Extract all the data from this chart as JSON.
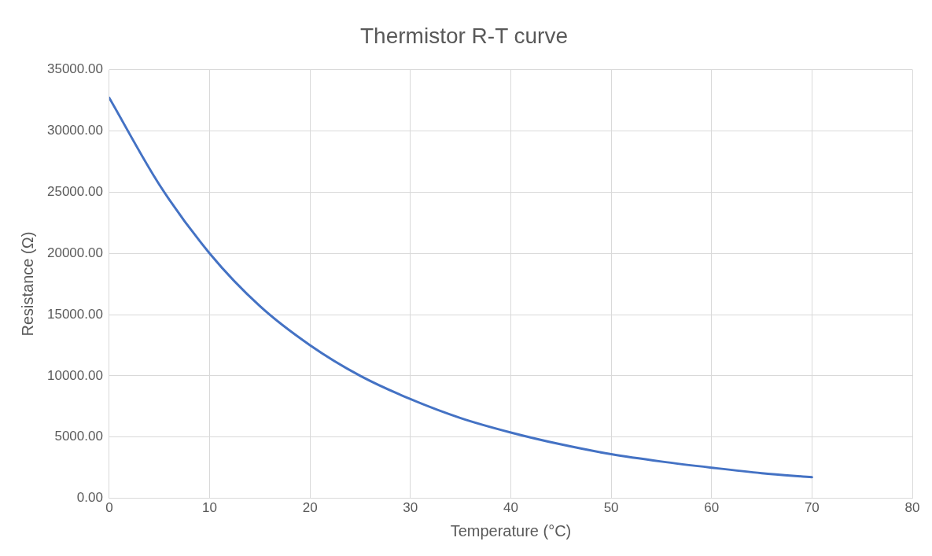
{
  "chart_data": {
    "type": "line",
    "title": "Thermistor R-T curve",
    "xlabel": "Temperature (°C)",
    "ylabel": "Resistance (Ω)",
    "series": [
      {
        "color": "#4472c4",
        "x": [
          0,
          5,
          10,
          15,
          20,
          25,
          30,
          35,
          40,
          45,
          50,
          55,
          60,
          65,
          70
        ],
        "values": [
          32700,
          25600,
          20000,
          15700,
          12500,
          10000,
          8100,
          6550,
          5370,
          4400,
          3600,
          3000,
          2500,
          2050,
          1720
        ]
      }
    ],
    "xlim": [
      0,
      80
    ],
    "xticks": [
      0,
      10,
      20,
      30,
      40,
      50,
      60,
      70,
      80
    ],
    "ylim": [
      0,
      35000
    ],
    "yticks": [
      {
        "value": 0,
        "label": "0.00"
      },
      {
        "value": 5000,
        "label": "5000.00"
      },
      {
        "value": 10000,
        "label": "10000.00"
      },
      {
        "value": 15000,
        "label": "15000.00"
      },
      {
        "value": 20000,
        "label": "20000.00"
      },
      {
        "value": 25000,
        "label": "25000.00"
      },
      {
        "value": 30000,
        "label": "30000.00"
      },
      {
        "value": 35000,
        "label": "35000.00"
      }
    ],
    "grid": true,
    "legend": false,
    "marker": "none",
    "line_style": "solid"
  }
}
